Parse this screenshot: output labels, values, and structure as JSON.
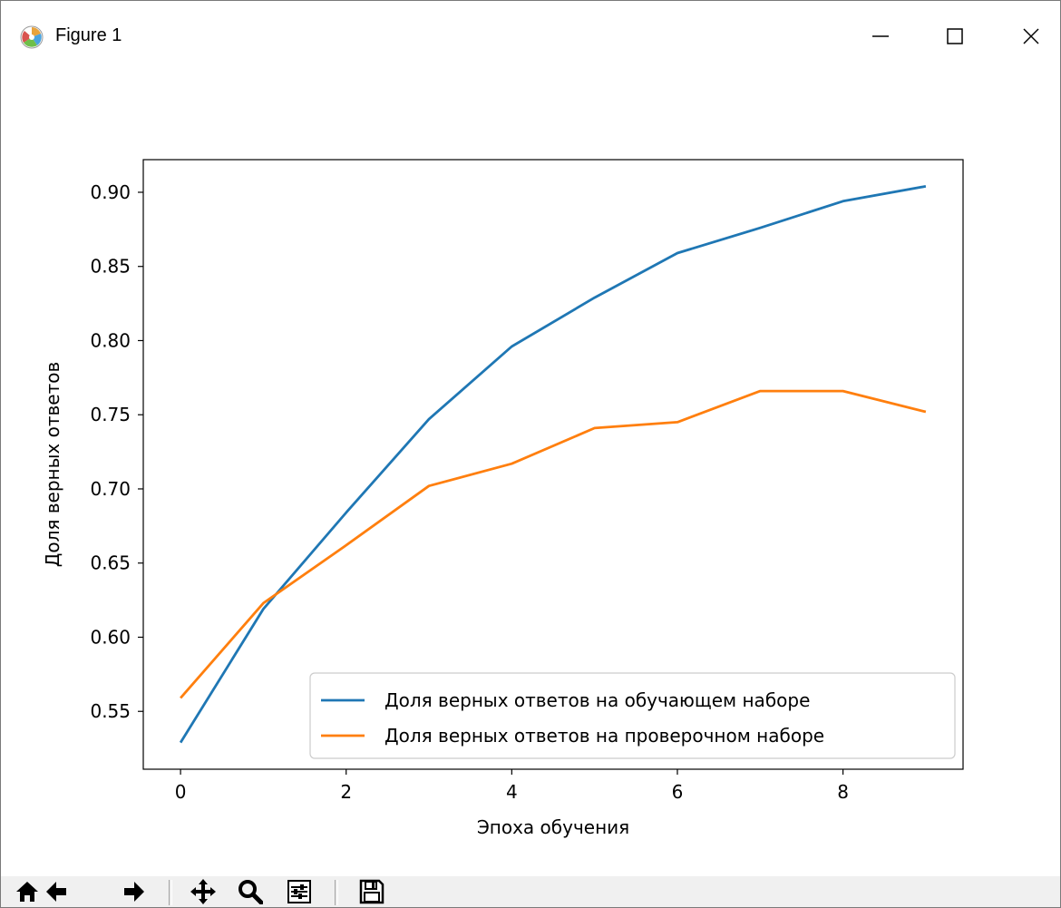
{
  "window": {
    "title": "Figure 1"
  },
  "toolbar": {
    "items": [
      {
        "name": "home-icon"
      },
      {
        "name": "back-arrow-icon"
      },
      {
        "name": "forward-arrow-icon"
      },
      {
        "name": "pan-icon"
      },
      {
        "name": "zoom-icon"
      },
      {
        "name": "configure-subplots-icon"
      },
      {
        "name": "save-icon"
      }
    ]
  },
  "colors": {
    "train": "#1f77b4",
    "val": "#ff7f0e"
  },
  "chart_data": {
    "type": "line",
    "title": "",
    "xlabel": "Эпоха обучения",
    "ylabel": "Доля верных ответов",
    "xlim": [
      -0.45,
      9.45
    ],
    "ylim": [
      0.511,
      0.922
    ],
    "xticks": [
      0,
      2,
      4,
      6,
      8
    ],
    "xtick_labels": [
      "0",
      "2",
      "4",
      "6",
      "8"
    ],
    "yticks": [
      0.55,
      0.6,
      0.65,
      0.7,
      0.75,
      0.8,
      0.85,
      0.9
    ],
    "ytick_labels": [
      "0.55",
      "0.60",
      "0.65",
      "0.70",
      "0.75",
      "0.80",
      "0.85",
      "0.90"
    ],
    "grid": false,
    "legend_position": "lower-right",
    "x": [
      0,
      1,
      2,
      3,
      4,
      5,
      6,
      7,
      8,
      9
    ],
    "series": [
      {
        "name": "Доля верных ответов на обучающем наборе",
        "color": "#1f77b4",
        "values": [
          0.529,
          0.619,
          0.684,
          0.747,
          0.796,
          0.829,
          0.859,
          0.876,
          0.894,
          0.904
        ]
      },
      {
        "name": "Доля верных ответов на проверочном наборе",
        "color": "#ff7f0e",
        "values": [
          0.559,
          0.623,
          0.662,
          0.702,
          0.717,
          0.741,
          0.745,
          0.766,
          0.766,
          0.752
        ]
      }
    ]
  }
}
